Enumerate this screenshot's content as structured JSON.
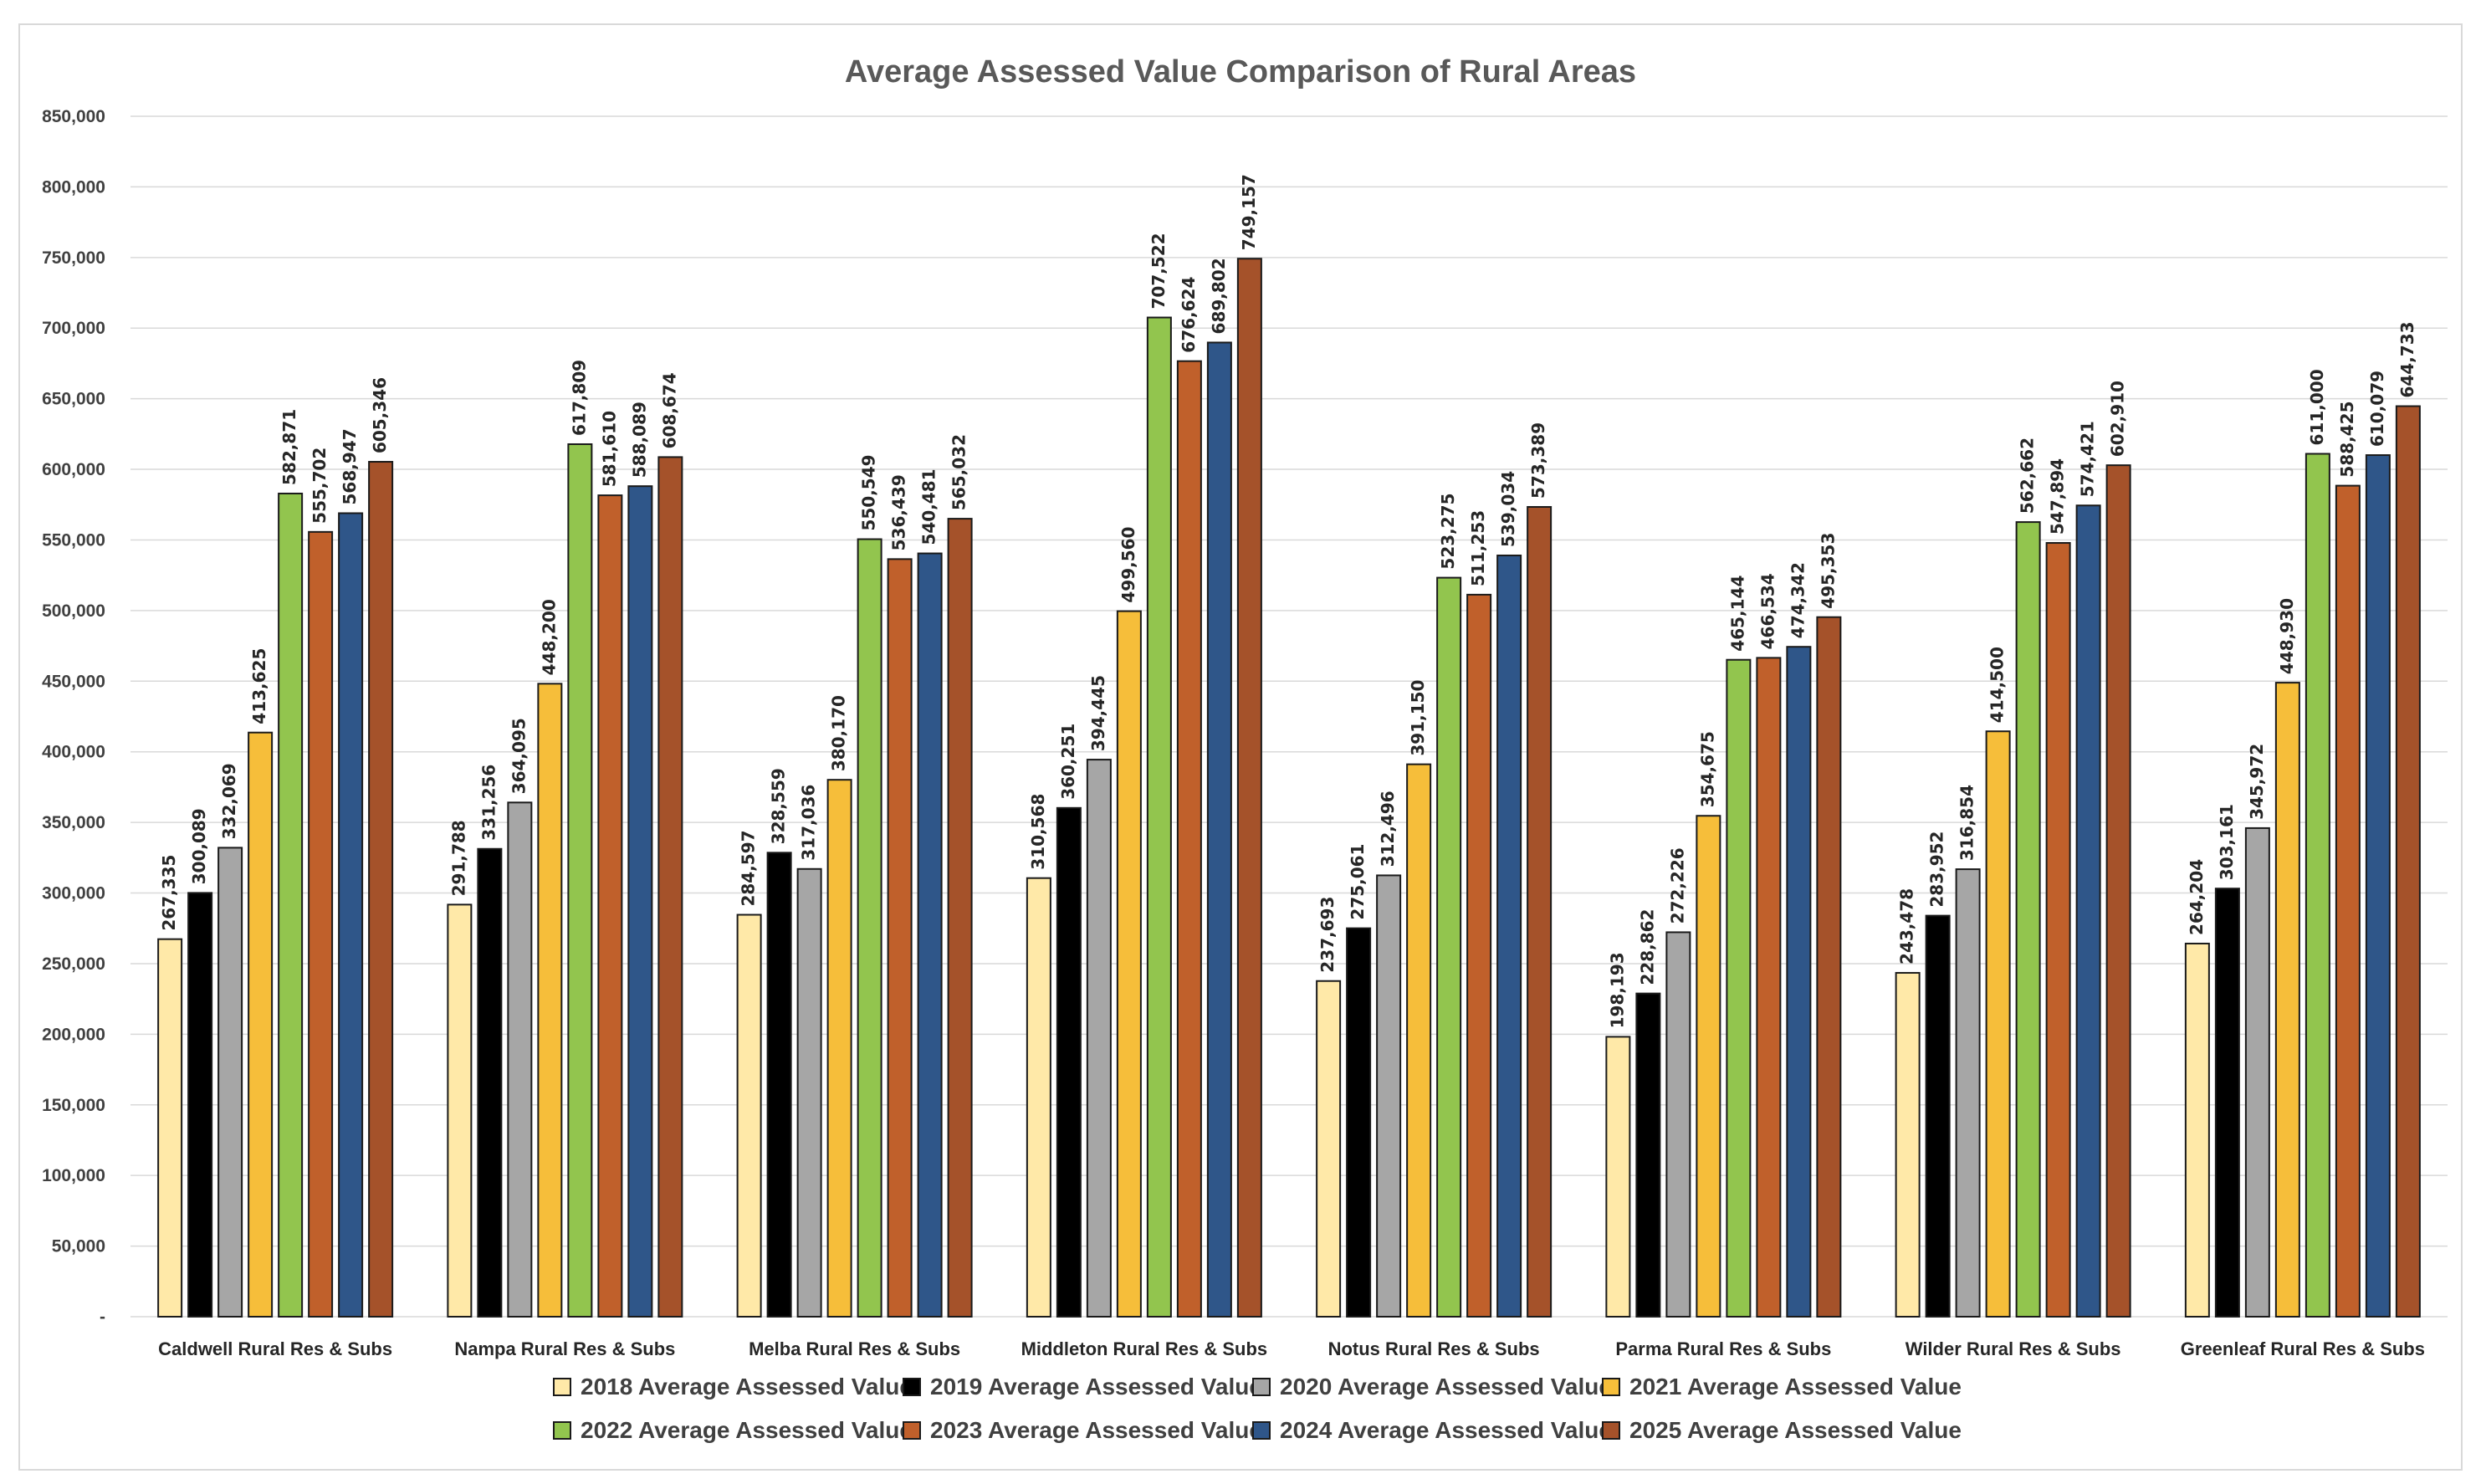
{
  "chart_data": {
    "type": "bar",
    "title": "Average Assessed Value Comparison of Rural Areas",
    "xlabel": "",
    "ylabel": "",
    "ylim": [
      0,
      850000
    ],
    "yticks": [
      0,
      50000,
      100000,
      150000,
      200000,
      250000,
      300000,
      350000,
      400000,
      450000,
      500000,
      550000,
      600000,
      650000,
      700000,
      750000,
      800000,
      850000
    ],
    "ytick_labels": [
      "-",
      "50,000",
      "100,000",
      "150,000",
      "200,000",
      "250,000",
      "300,000",
      "350,000",
      "400,000",
      "450,000",
      "500,000",
      "550,000",
      "600,000",
      "650,000",
      "700,000",
      "750,000",
      "800,000",
      "850,000"
    ],
    "grid": true,
    "legend_position": "bottom",
    "categories": [
      "Caldwell Rural Res & Subs",
      "Nampa Rural Res & Subs",
      "Melba Rural Res & Subs",
      "Middleton Rural Res & Subs",
      "Notus Rural Res & Subs",
      "Parma Rural Res & Subs",
      "Wilder Rural Res & Subs",
      "Greenleaf Rural Res & Subs"
    ],
    "series": [
      {
        "name": "2018 Average Assessed Value",
        "color": "#FFE9A8",
        "values": [
          267335,
          291788,
          284597,
          310568,
          237693,
          198193,
          243478,
          264204
        ],
        "labels": [
          "267,335",
          "291,788",
          "284,597",
          "310,568",
          "237,693",
          "198,193",
          "243,478",
          "264,204"
        ]
      },
      {
        "name": "2019 Average Assessed Value",
        "color": "#000000",
        "values": [
          300089,
          331256,
          328559,
          360251,
          275061,
          228862,
          283952,
          303161
        ],
        "labels": [
          "300,089",
          "331,256",
          "328,559",
          "360,251",
          "275,061",
          "228,862",
          "283,952",
          "303,161"
        ]
      },
      {
        "name": "2020 Average Assessed Value",
        "color": "#A6A6A6",
        "values": [
          332069,
          364095,
          317036,
          394445,
          312496,
          272226,
          316854,
          345972
        ],
        "labels": [
          "332,069",
          "364,095",
          "317,036",
          "394,445",
          "312,496",
          "272,226",
          "316,854",
          "345,972"
        ]
      },
      {
        "name": "2021 Average Assessed Value",
        "color": "#F6BE3A",
        "values": [
          413625,
          448200,
          380170,
          499560,
          391150,
          354675,
          414500,
          448930
        ],
        "labels": [
          "413,625",
          "448,200",
          "380,170",
          "499,560",
          "391,150",
          "354,675",
          "414,500",
          "448,930"
        ]
      },
      {
        "name": "2022 Average Assessed Value",
        "color": "#92C54E",
        "values": [
          582871,
          617809,
          550549,
          707522,
          523275,
          465144,
          562662,
          611000
        ],
        "labels": [
          "582,871",
          "617,809",
          "550,549",
          "707,522",
          "523,275",
          "465,144",
          "562,662",
          "611,000"
        ]
      },
      {
        "name": "2023 Average Assessed Value",
        "color": "#C0602B",
        "values": [
          555702,
          581610,
          536439,
          676624,
          511253,
          466534,
          547894,
          588425
        ],
        "labels": [
          "555,702",
          "581,610",
          "536,439",
          "676,624",
          "511,253",
          "466,534",
          "547,894",
          "588,425"
        ]
      },
      {
        "name": "2024 Average Assessed Value",
        "color": "#2F5689",
        "values": [
          568947,
          588089,
          540481,
          689802,
          539034,
          474342,
          574421,
          610079
        ],
        "labels": [
          "568,947",
          "588,089",
          "540,481",
          "689,802",
          "539,034",
          "474,342",
          "574,421",
          "610,079"
        ]
      },
      {
        "name": "2025 Average Assessed Value",
        "color": "#A5522A",
        "values": [
          605346,
          608674,
          565032,
          749157,
          573389,
          495353,
          602910,
          644733
        ],
        "labels": [
          "605,346",
          "608,674",
          "565,032",
          "749,157",
          "573,389",
          "495,353",
          "602,910",
          "644,733"
        ]
      }
    ]
  }
}
